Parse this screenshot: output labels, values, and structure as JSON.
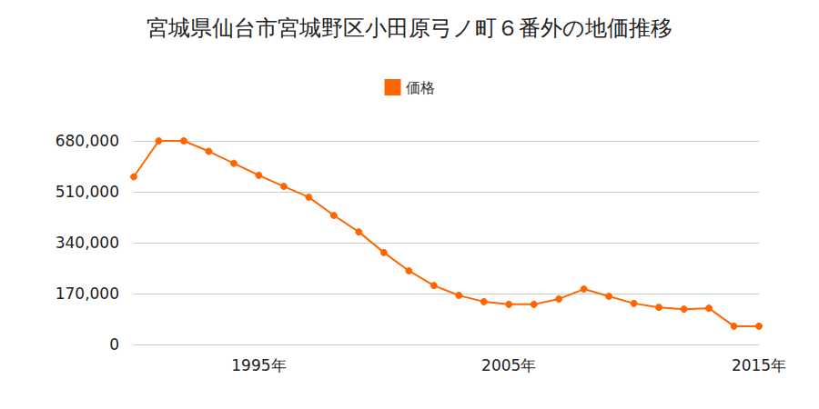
{
  "chart_data": {
    "type": "line",
    "title": "宮城県仙台市宮城野区小田原弓ノ町６番外の地価推移",
    "categories": [
      null,
      null,
      null,
      null,
      null,
      "1995年",
      null,
      null,
      null,
      null,
      null,
      null,
      null,
      null,
      null,
      "2005年",
      null,
      null,
      null,
      null,
      null,
      null,
      null,
      null,
      null,
      "2015年"
    ],
    "series": [
      {
        "name": "価格",
        "color": "#ff6600",
        "marker": "circle",
        "line_style": "solid",
        "values": [
          560000,
          680000,
          680000,
          645000,
          605000,
          565000,
          528000,
          492000,
          431000,
          376000,
          307000,
          246000,
          197000,
          164000,
          143000,
          134000,
          134000,
          152000,
          185000,
          161000,
          137000,
          124000,
          118000,
          121000,
          61000,
          61000
        ]
      }
    ],
    "ylim": [
      0,
      680000
    ],
    "yticks": [
      0,
      {
        "value": 170000,
        "label": "170,000"
      },
      {
        "value": 340000,
        "label": "340,000"
      },
      {
        "value": 510000,
        "label": "510,000"
      },
      {
        "value": 680000,
        "label": "680,000"
      }
    ],
    "grid": true,
    "legend": "top"
  }
}
